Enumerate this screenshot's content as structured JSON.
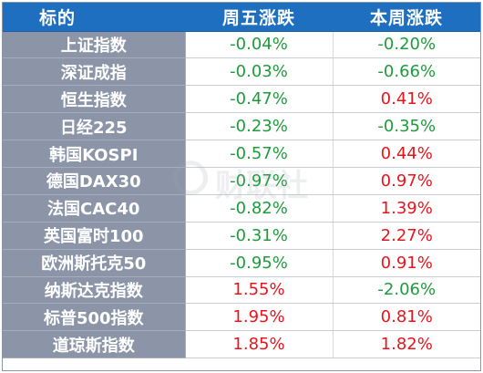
{
  "header": {
    "col_name": "标的",
    "col_friday": "周五涨跌",
    "col_week": "本周涨跌"
  },
  "rows": [
    {
      "name": "上证指数",
      "friday": "-0.04%",
      "week": "-0.20%"
    },
    {
      "name": "深证成指",
      "friday": "-0.03%",
      "week": "-0.66%"
    },
    {
      "name": "恒生指数",
      "friday": "-0.47%",
      "week": "0.41%"
    },
    {
      "name": "日经225",
      "friday": "-0.23%",
      "week": "-0.35%"
    },
    {
      "name": "韩国KOSPI",
      "friday": "-0.57%",
      "week": "0.44%"
    },
    {
      "name": "德国DAX30",
      "friday": "-0.97%",
      "week": "0.97%"
    },
    {
      "name": "法国CAC40",
      "friday": "-0.82%",
      "week": "1.39%"
    },
    {
      "name": "英国富时100",
      "friday": "-0.31%",
      "week": "2.27%"
    },
    {
      "name": "欧洲斯托克50",
      "friday": "-0.95%",
      "week": "0.91%"
    },
    {
      "name": "纳斯达克指数",
      "friday": "1.55%",
      "week": "-2.06%"
    },
    {
      "name": "标普500指数",
      "friday": "1.95%",
      "week": "0.81%"
    },
    {
      "name": "道琼斯指数",
      "friday": "1.85%",
      "week": "1.82%"
    }
  ],
  "colors": {
    "header_bg": "#1f6fc0",
    "name_bg": "#8b95a7",
    "positive": "#e8141c",
    "negative": "#1e9c3c"
  },
  "watermark": {
    "text": "财联社"
  }
}
